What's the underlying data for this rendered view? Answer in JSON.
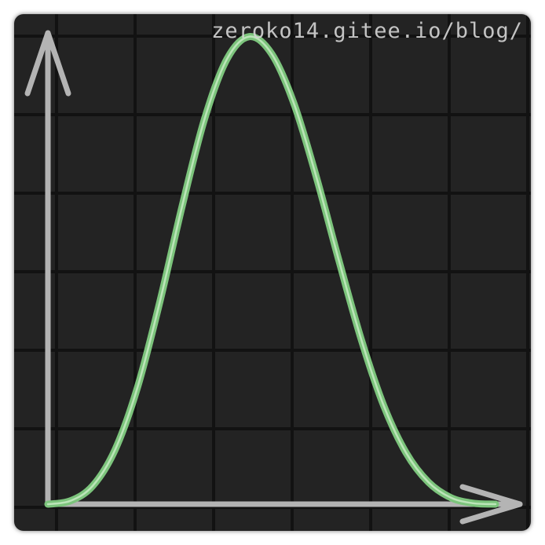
{
  "watermark": "zeroko14.gitee.io/blog/",
  "chart_data": {
    "type": "line",
    "title": "",
    "xlabel": "",
    "ylabel": "",
    "grid": true,
    "x": [
      0,
      0.05,
      0.1,
      0.15,
      0.2,
      0.25,
      0.3,
      0.35,
      0.4,
      0.45,
      0.5,
      0.55,
      0.6,
      0.65,
      0.7,
      0.75,
      0.8,
      0.85,
      0.9,
      0.95,
      1.0
    ],
    "series": [
      {
        "values": [
          0.0,
          0.007,
          0.039,
          0.116,
          0.249,
          0.432,
          0.637,
          0.823,
          0.951,
          0.999,
          0.962,
          0.855,
          0.698,
          0.521,
          0.352,
          0.211,
          0.11,
          0.047,
          0.014,
          0.002,
          0.0
        ]
      }
    ],
    "xlim": [
      0,
      1
    ],
    "ylim": [
      0,
      1
    ],
    "colors": {
      "background": "#232323",
      "grid": "#121212",
      "curve": "#7cc47c",
      "curve_highlight": "#c8ebc4",
      "axes": "#b4b4b4"
    }
  }
}
